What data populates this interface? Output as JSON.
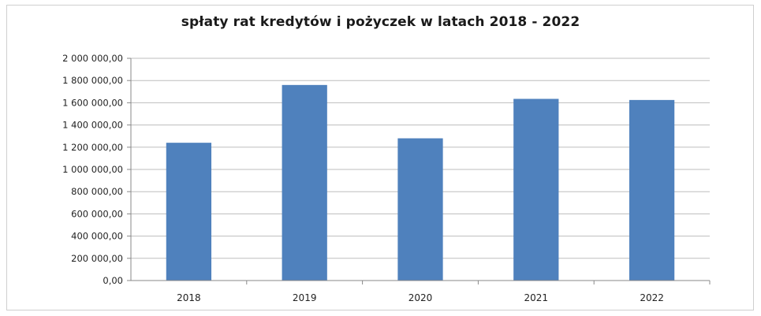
{
  "chart_data": {
    "type": "bar",
    "title": "spłaty rat kredytów i pożyczek w latach 2018 - 2022",
    "categories": [
      "2018",
      "2019",
      "2020",
      "2021",
      "2022"
    ],
    "values": [
      1240000,
      1760000,
      1280000,
      1635000,
      1625000
    ],
    "ylim": [
      0,
      2000000
    ],
    "yticks": [
      0,
      200000,
      400000,
      600000,
      800000,
      1000000,
      1200000,
      1400000,
      1600000,
      1800000,
      2000000
    ],
    "ytick_labels": [
      "0,00",
      "200 000,00",
      "400 000,00",
      "600 000,00",
      "800 000,00",
      "1 000 000,00",
      "1 200 000,00",
      "1 400 000,00",
      "1 600 000,00",
      "1 800 000,00",
      "2 000 000,00"
    ],
    "xlabel": "",
    "ylabel": "",
    "grid": true,
    "legend": "none",
    "bar_color": "#4f81bd"
  }
}
